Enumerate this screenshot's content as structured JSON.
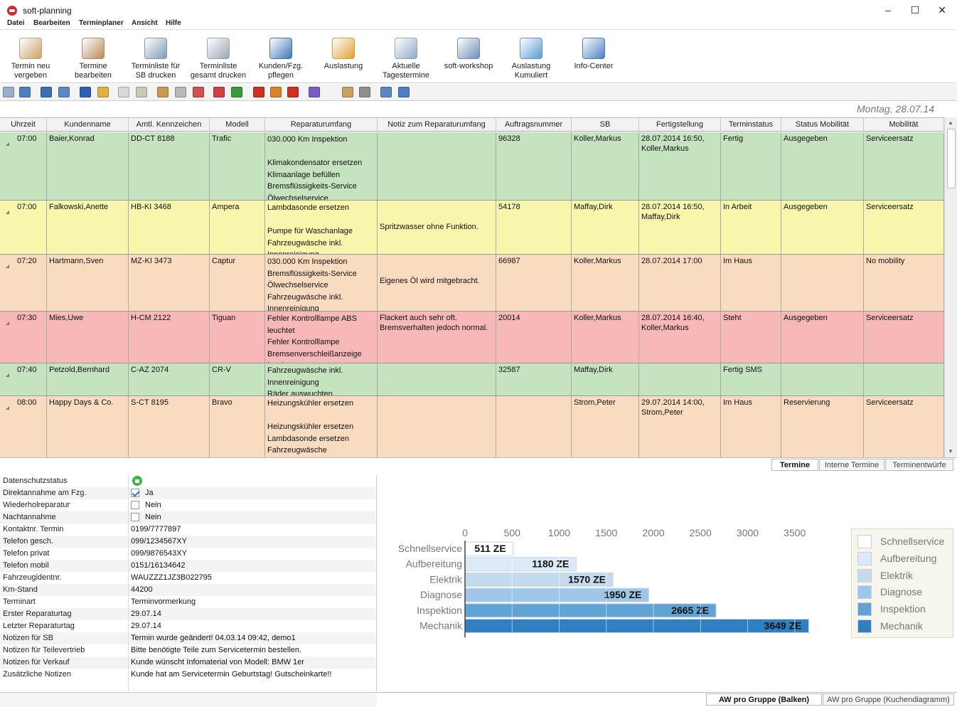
{
  "app": {
    "title": "soft-planning"
  },
  "menu": [
    "Datei",
    "Bearbeiten",
    "Terminplaner",
    "Ansicht",
    "Hilfe"
  ],
  "ribbon": [
    {
      "label": "Termin neu\nvergeben",
      "icon": "calendar-pen-icon",
      "color": "#c9a46a"
    },
    {
      "label": "Termine\nbearbeiten",
      "icon": "calendar-edit-icon",
      "color": "#b98a5a"
    },
    {
      "label": "Terminliste für\nSB drucken",
      "icon": "printer-icon",
      "color": "#7f9bb5"
    },
    {
      "label": "Terminliste\ngesamt drucken",
      "icon": "printer-list-icon",
      "color": "#9aa6b2"
    },
    {
      "label": "Kunden/Fzg.\npflegen",
      "icon": "customer-car-icon",
      "color": "#3f78b8"
    },
    {
      "label": "Auslastung",
      "icon": "bar-chart-icon",
      "color": "#e0a030"
    },
    {
      "label": "Aktuelle\nTagestermine",
      "icon": "clock-calendar-icon",
      "color": "#8fa8c8"
    },
    {
      "label": "soft-workshop",
      "icon": "gear-clock-icon",
      "color": "#6d8fb7"
    },
    {
      "label": "Auslastung\nKumuliert",
      "icon": "stacked-chart-icon",
      "color": "#5b9bd5"
    },
    {
      "label": "Info-Center",
      "icon": "info-icon",
      "color": "#4a7fc1"
    }
  ],
  "toolbar_icons": [
    {
      "name": "print-preview-icon",
      "color": "#9bb0c8"
    },
    {
      "name": "calendar-view-icon",
      "color": "#4d7fc0"
    },
    {
      "name": "filter-icon",
      "color": "#3a6fb8"
    },
    {
      "name": "search-icon",
      "color": "#5b87c2"
    },
    {
      "name": "word-export-icon",
      "color": "#2f5fb3"
    },
    {
      "name": "notes-icon",
      "color": "#e0b040"
    },
    {
      "name": "new-document-icon",
      "color": "#d9d9d9"
    },
    {
      "name": "copy-document-icon",
      "color": "#c9c9b9"
    },
    {
      "name": "export-icon",
      "color": "#c89a50"
    },
    {
      "name": "edit-document-icon",
      "color": "#b9b9b9"
    },
    {
      "name": "delete-document-icon",
      "color": "#d05050"
    },
    {
      "name": "check-icon",
      "color": "#d04040"
    },
    {
      "name": "approve-icon",
      "color": "#3b9b3b"
    },
    {
      "name": "arrow-left-icon",
      "color": "#d03020"
    },
    {
      "name": "home-icon",
      "color": "#d9822b"
    },
    {
      "name": "arrow-right-icon",
      "color": "#d03020"
    },
    {
      "name": "color-grid-icon",
      "color": "#7a5bc8"
    },
    {
      "name": "import-icon",
      "color": "#c8a060"
    },
    {
      "name": "transfer-icon",
      "color": "#8f8f8f"
    },
    {
      "name": "send-icon",
      "color": "#5b87c2"
    },
    {
      "name": "window-icon",
      "color": "#4d7fc0"
    }
  ],
  "date_label": "Montag, 28.07.14",
  "grid": {
    "columns": [
      "Uhrzeit",
      "Kundenname",
      "Amtl. Kennzeichen",
      "Modell",
      "Reparaturumfang",
      "Notiz zum Reparaturumfang",
      "Auftragsnummer",
      "SB",
      "Fertigstellung",
      "Terminstatus",
      "Status Mobilität",
      "Mobilität"
    ],
    "rows": [
      {
        "time": "07:00",
        "customer": "Baier,Konrad",
        "plate": "DD-CT 8188",
        "model": "Trafic",
        "repair": "030.000 Km Inspektion\n\nKlimakondensator ersetzen\nKlimaanlage befüllen\nBremsflüssigkeits-Service\nÖlwechselservice",
        "note": "",
        "order": "96328",
        "sb": "Koller,Markus",
        "completion": "28.07.2014 16:50,\nKoller,Markus",
        "status": "Fertig",
        "mobility_status": "Ausgegeben",
        "mobility": "Serviceersatz",
        "color": "#c5e3bf"
      },
      {
        "time": "07:00",
        "customer": "Falkowski,Anette",
        "plate": "HB-KI 3468",
        "model": "Ampera",
        "repair": "Lambdasonde ersetzen\n\nPumpe für Waschanlage\nFahrzeugwäsche inkl.\nInnenreinigung",
        "note": "\n\nSpritzwasser ohne Funktion.",
        "order": "54178",
        "sb": "Maffay,Dirk",
        "completion": "28.07.2014 16:50,\nMaffay,Dirk",
        "status": "In Arbeit",
        "mobility_status": "Ausgegeben",
        "mobility": "Serviceersatz",
        "color": "#f8f5ad"
      },
      {
        "time": "07:20",
        "customer": "Hartmann,Sven",
        "plate": "MZ-KI 3473",
        "model": "Captur",
        "repair": "030.000 Km Inspektion\nBremsflüssigkeits-Service\nÖlwechselservice\nFahrzeugwäsche inkl.\nInnenreinigung",
        "note": "\n\nEigenes Öl wird mitgebracht.",
        "order": "66987",
        "sb": "Koller,Markus",
        "completion": "28.07.2014 17:00",
        "status": "Im Haus",
        "mobility_status": "",
        "mobility": "No mobility",
        "color": "#f9dcc0"
      },
      {
        "time": "07:30",
        "customer": "Mies,Uwe",
        "plate": "H-CM 2122",
        "model": "Tiguan",
        "repair": "Fehler Kontrolllampe ABS\nleuchtet\nFehler Kontrolllampe\nBremsenverschleißanzeige\nleuchtet",
        "note": "Flackert auch sehr oft.\nBremsverhalten jedoch normal.",
        "order": "20014",
        "sb": "Koller,Markus",
        "completion": "28.07.2014 16:40,\nKoller,Markus",
        "status": "Steht",
        "mobility_status": "Ausgegeben",
        "mobility": "Serviceersatz",
        "color": "#f7b8b8"
      },
      {
        "time": "07:40",
        "customer": "Petzold,Bernhard",
        "plate": "C-AZ 2074",
        "model": "CR-V",
        "repair": "Fahrzeugwäsche inkl.\nInnenreinigung\nRäder auswuchten",
        "note": "",
        "order": "32587",
        "sb": "Maffay,Dirk",
        "completion": "",
        "status": "Fertig SMS",
        "mobility_status": "",
        "mobility": "",
        "color": "#c5e3bf"
      },
      {
        "time": "08:00",
        "customer": "Happy Days & Co.",
        "plate": "S-CT 8195",
        "model": "Bravo",
        "repair": "Heizungskühler ersetzen\n\nHeizungskühler ersetzen\nLambdasonde ersetzen\nFahrzeugwäsche",
        "note": "",
        "order": "",
        "sb": "Strom,Peter",
        "completion": "29.07.2014 14:00,\nStrom,Peter",
        "status": "Im Haus",
        "mobility_status": "Reservierung",
        "mobility": "Serviceersatz",
        "color": "#f9dcc0"
      }
    ]
  },
  "tabs_top": [
    "Termine",
    "Interne Termine",
    "Terminentwürfe"
  ],
  "details": [
    {
      "label": "Datenschutzstatus",
      "type": "icon",
      "value": ""
    },
    {
      "label": "Direktannahme am Fzg.",
      "type": "check",
      "checked": true,
      "value": "Ja"
    },
    {
      "label": "Wiederholreparatur",
      "type": "check",
      "checked": false,
      "value": "Nein"
    },
    {
      "label": "Nachtannahme",
      "type": "check",
      "checked": false,
      "value": "Nein"
    },
    {
      "label": "Kontaktnr. Termin",
      "type": "text",
      "value": "0199/7777897"
    },
    {
      "label": "Telefon gesch.",
      "type": "text",
      "value": "099/1234567XY"
    },
    {
      "label": "Telefon privat",
      "type": "text",
      "value": "099/9876543XY"
    },
    {
      "label": "Telefon mobil",
      "type": "text",
      "value": "0151/16134642"
    },
    {
      "label": "Fahrzeugidentnr.",
      "type": "text",
      "value": "WAUZZZ1JZ3B022795"
    },
    {
      "label": "Km-Stand",
      "type": "text",
      "value": "44200"
    },
    {
      "label": "Terminart",
      "type": "text",
      "value": "Terminvormerkung"
    },
    {
      "label": "Erster Reparaturtag",
      "type": "text",
      "value": "29.07.14"
    },
    {
      "label": "Letzter Reparaturtag",
      "type": "text",
      "value": "29.07.14"
    },
    {
      "label": "Notizen für SB",
      "type": "text",
      "value": "Termin wurde geändert! 04.03.14 09:42, demo1"
    },
    {
      "label": "Notizen für Teilevertrieb",
      "type": "text",
      "value": "Bitte benötigte Teile zum Servicetermin bestellen."
    },
    {
      "label": "Notizen für Verkauf",
      "type": "text",
      "value": "Kunde wünscht Infomaterial von Modell: BMW 1er"
    },
    {
      "label": "Zusätzliche Notizen",
      "type": "text",
      "value": "Kunde hat am Servicetermin Geburtstag! Gutscheinkarte!!"
    }
  ],
  "chart_data": {
    "type": "bar",
    "orientation": "horizontal",
    "categories": [
      "Schnellservice",
      "Aufbereitung",
      "Elektrik",
      "Diagnose",
      "Inspektion",
      "Mechanik"
    ],
    "values": [
      511,
      1180,
      1570,
      1950,
      2665,
      3649
    ],
    "data_labels": [
      "511 ZE",
      "1180 ZE",
      "1570 ZE",
      "1950 ZE",
      "2665 ZE",
      "3649 ZE"
    ],
    "xlim": [
      0,
      3500
    ],
    "xticks": [
      0,
      500,
      1000,
      1500,
      2000,
      2500,
      3000,
      3500
    ],
    "colors": [
      "#ffffff",
      "#dde9f6",
      "#c4dbef",
      "#9ec6e6",
      "#62a3d6",
      "#2f7fc1"
    ],
    "legend": [
      "Schnellservice",
      "Aufbereitung",
      "Elektrik",
      "Diagnose",
      "Inspektion",
      "Mechanik"
    ],
    "legend_position": "right",
    "grid": true
  },
  "tabs_bottom": [
    "AW pro Gruppe (Balken)",
    "AW pro Gruppe (Kuchendiagramm)"
  ]
}
